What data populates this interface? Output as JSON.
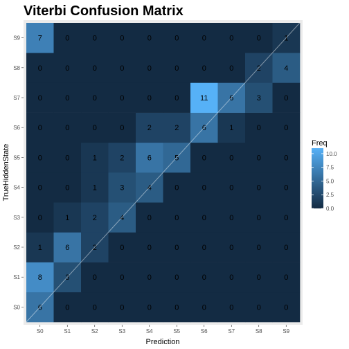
{
  "chart_data": {
    "type": "heatmap",
    "title": "Viterbi Confusion Matrix",
    "xlabel": "Prediction",
    "ylabel": "TrueHiddenState",
    "x_categories": [
      "S0",
      "S1",
      "S2",
      "S3",
      "S4",
      "S5",
      "S6",
      "S7",
      "S8",
      "S9"
    ],
    "y_categories": [
      "S0",
      "S1",
      "S2",
      "S3",
      "S4",
      "S5",
      "S6",
      "S7",
      "S8",
      "S9"
    ],
    "values": [
      [
        6,
        0,
        0,
        0,
        0,
        0,
        0,
        0,
        0,
        0
      ],
      [
        8,
        3,
        0,
        0,
        0,
        0,
        0,
        0,
        0,
        0
      ],
      [
        1,
        6,
        2,
        0,
        0,
        0,
        0,
        0,
        0,
        0
      ],
      [
        0,
        1,
        2,
        4,
        0,
        0,
        0,
        0,
        0,
        0
      ],
      [
        0,
        0,
        1,
        3,
        4,
        0,
        0,
        0,
        0,
        0
      ],
      [
        0,
        0,
        1,
        2,
        6,
        5,
        0,
        0,
        0,
        0
      ],
      [
        0,
        0,
        0,
        0,
        2,
        2,
        6,
        1,
        0,
        0
      ],
      [
        0,
        0,
        0,
        0,
        0,
        0,
        11,
        6,
        3,
        0
      ],
      [
        0,
        0,
        0,
        0,
        0,
        0,
        0,
        0,
        2,
        4
      ],
      [
        7,
        0,
        0,
        0,
        0,
        0,
        0,
        0,
        0,
        1
      ]
    ],
    "legend": {
      "title": "Freq",
      "ticks": [
        "0.0",
        "2.5",
        "5.0",
        "7.5",
        "10.0"
      ],
      "tick_values": [
        0,
        2.5,
        5,
        7.5,
        10
      ],
      "range": [
        0,
        11
      ],
      "color_low": "#132B43",
      "color_high": "#56B1F7",
      "placement": "right"
    },
    "diagonal_line": true,
    "panel_background": "#EBEBEB"
  }
}
